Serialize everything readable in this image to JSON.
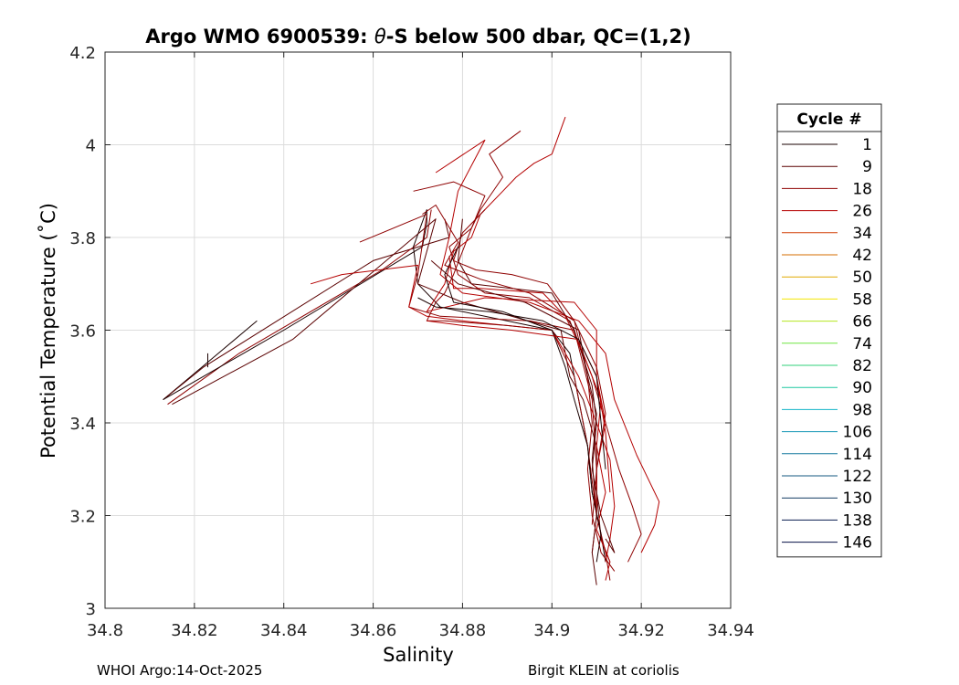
{
  "chart_data": {
    "type": "line",
    "title_prefix": "Argo WMO 6900539: ",
    "title_theta": "θ",
    "title_suffix": "-S below 500 dbar,  QC=(1,2)",
    "xlabel": "Salinity",
    "ylabel": "Potential Temperature (˚C)",
    "xlim": [
      34.8,
      34.94
    ],
    "ylim": [
      3.0,
      4.2
    ],
    "xticks": [
      34.8,
      34.82,
      34.84,
      34.86,
      34.88,
      34.9,
      34.92,
      34.94
    ],
    "xtick_labels": [
      "34.8",
      "34.82",
      "34.84",
      "34.86",
      "34.88",
      "34.9",
      "34.92",
      "34.94"
    ],
    "yticks": [
      3.0,
      3.2,
      3.4,
      3.6,
      3.8,
      4.0,
      4.2
    ],
    "ytick_labels": [
      "3",
      "3.2",
      "3.4",
      "3.6",
      "3.8",
      "4",
      "4.2"
    ],
    "grid": true,
    "legend_title": "Cycle #",
    "legend_position": "right",
    "legend": [
      {
        "label": "1",
        "color": "#1a0000"
      },
      {
        "label": "9",
        "color": "#5a0000"
      },
      {
        "label": "18",
        "color": "#8e0000"
      },
      {
        "label": "26",
        "color": "#b40000"
      },
      {
        "label": "34",
        "color": "#d23b00"
      },
      {
        "label": "42",
        "color": "#d66e00"
      },
      {
        "label": "50",
        "color": "#e0a800"
      },
      {
        "label": "58",
        "color": "#f2e600"
      },
      {
        "label": "66",
        "color": "#b4e61e"
      },
      {
        "label": "74",
        "color": "#6ee640"
      },
      {
        "label": "82",
        "color": "#32d278"
      },
      {
        "label": "90",
        "color": "#1ec8a0"
      },
      {
        "label": "98",
        "color": "#14b4c8"
      },
      {
        "label": "106",
        "color": "#1496b4"
      },
      {
        "label": "114",
        "color": "#14789e"
      },
      {
        "label": "122",
        "color": "#145a82"
      },
      {
        "label": "130",
        "color": "#143c64"
      },
      {
        "label": "138",
        "color": "#0a1e50"
      },
      {
        "label": "146",
        "color": "#050f46"
      }
    ],
    "series": [
      {
        "color": "#1a0000",
        "x": [
          34.813,
          34.834
        ],
        "y": [
          3.45,
          3.62
        ]
      },
      {
        "color": "#1a0000",
        "x": [
          34.823,
          34.823
        ],
        "y": [
          3.52,
          3.55
        ]
      },
      {
        "color": "#5a0000",
        "x": [
          34.813,
          34.822,
          34.86,
          34.877,
          34.876
        ],
        "y": [
          3.45,
          3.52,
          3.75,
          3.8,
          3.84
        ]
      },
      {
        "color": "#8e0000",
        "x": [
          34.814,
          34.83,
          34.862,
          34.872,
          34.873
        ],
        "y": [
          3.44,
          3.55,
          3.73,
          3.8,
          3.86
        ]
      },
      {
        "color": "#1a0000",
        "x": [
          34.813,
          34.84,
          34.871,
          34.872,
          34.872,
          34.869,
          34.87,
          34.875,
          34.9,
          34.904,
          34.906,
          34.908,
          34.909,
          34.911,
          34.912
        ],
        "y": [
          3.45,
          3.6,
          3.78,
          3.83,
          3.86,
          3.78,
          3.7,
          3.65,
          3.6,
          3.55,
          3.45,
          3.35,
          3.25,
          3.16,
          3.1
        ]
      },
      {
        "color": "#5a0000",
        "x": [
          34.815,
          34.842,
          34.874,
          34.87,
          34.88,
          34.902,
          34.904,
          34.907,
          34.91,
          34.91,
          34.911,
          34.913
        ],
        "y": [
          3.44,
          3.58,
          3.84,
          3.7,
          3.66,
          3.6,
          3.5,
          3.45,
          3.35,
          3.25,
          3.15,
          3.1
        ]
      },
      {
        "color": "#8e0000",
        "x": [
          34.857,
          34.872,
          34.87,
          34.868,
          34.875,
          34.895,
          34.905,
          34.909,
          34.91,
          34.91,
          34.912,
          34.913
        ],
        "y": [
          3.79,
          3.85,
          3.72,
          3.65,
          3.63,
          3.62,
          3.6,
          3.45,
          3.3,
          3.2,
          3.12,
          3.06
        ]
      },
      {
        "color": "#b40000",
        "x": [
          34.846,
          34.853,
          34.87,
          34.868,
          34.872,
          34.88,
          34.9,
          34.906,
          34.91,
          34.913,
          34.914,
          34.913,
          34.912
        ],
        "y": [
          3.7,
          3.72,
          3.74,
          3.65,
          3.63,
          3.62,
          3.6,
          3.5,
          3.4,
          3.32,
          3.22,
          3.15,
          3.1
        ]
      },
      {
        "color": "#8e0000",
        "x": [
          34.869,
          34.878,
          34.885,
          34.882,
          34.88,
          34.878,
          34.876,
          34.874,
          34.873,
          34.872,
          34.876,
          34.89,
          34.9,
          34.905,
          34.908,
          34.91
        ],
        "y": [
          3.9,
          3.92,
          3.89,
          3.82,
          3.77,
          3.72,
          3.68,
          3.66,
          3.64,
          3.62,
          3.62,
          3.61,
          3.6,
          3.5,
          3.35,
          3.2
        ]
      },
      {
        "color": "#b40000",
        "x": [
          34.874,
          34.885,
          34.879,
          34.877,
          34.875,
          34.88,
          34.895,
          34.906,
          34.912,
          34.914,
          34.919,
          34.924,
          34.923,
          34.92
        ],
        "y": [
          3.94,
          4.01,
          3.9,
          3.8,
          3.72,
          3.68,
          3.66,
          3.62,
          3.55,
          3.45,
          3.33,
          3.23,
          3.18,
          3.12
        ]
      },
      {
        "color": "#8e0000",
        "x": [
          34.893,
          34.886,
          34.889,
          34.884,
          34.882,
          34.877,
          34.879,
          34.885,
          34.895,
          34.904,
          34.909,
          34.912,
          34.915,
          34.918,
          34.92,
          34.917
        ],
        "y": [
          4.03,
          3.98,
          3.93,
          3.86,
          3.82,
          3.78,
          3.72,
          3.68,
          3.67,
          3.62,
          3.5,
          3.4,
          3.3,
          3.22,
          3.16,
          3.1
        ]
      },
      {
        "color": "#b40000",
        "x": [
          34.903,
          34.9,
          34.896,
          34.892,
          34.889,
          34.884,
          34.882,
          34.878,
          34.876,
          34.872,
          34.885,
          34.905,
          34.91,
          34.91,
          34.912,
          34.91,
          34.91,
          34.909
        ],
        "y": [
          4.06,
          3.98,
          3.96,
          3.93,
          3.9,
          3.85,
          3.8,
          3.77,
          3.7,
          3.64,
          3.67,
          3.66,
          3.6,
          3.5,
          3.4,
          3.3,
          3.2,
          3.12
        ]
      },
      {
        "color": "#8e0000",
        "x": [
          34.885,
          34.88,
          34.878,
          34.883,
          34.891,
          34.899,
          34.905,
          34.908,
          34.909,
          34.908,
          34.909,
          34.911,
          34.914
        ],
        "y": [
          3.86,
          3.81,
          3.75,
          3.73,
          3.72,
          3.7,
          3.62,
          3.5,
          3.4,
          3.3,
          3.2,
          3.12,
          3.08
        ]
      },
      {
        "color": "#5a0000",
        "x": [
          34.88,
          34.879,
          34.882,
          34.9,
          34.905,
          34.909,
          34.91,
          34.909,
          34.911,
          34.914,
          34.912
        ],
        "y": [
          3.84,
          3.75,
          3.7,
          3.68,
          3.6,
          3.48,
          3.4,
          3.3,
          3.2,
          3.12,
          3.15
        ]
      },
      {
        "color": "#b40000",
        "x": [
          34.877,
          34.878,
          34.884,
          34.898,
          34.903,
          34.907,
          34.911,
          34.91,
          34.912,
          34.91,
          34.913,
          34.912
        ],
        "y": [
          3.76,
          3.69,
          3.69,
          3.68,
          3.63,
          3.55,
          3.45,
          3.35,
          3.25,
          3.17,
          3.1,
          3.06
        ]
      },
      {
        "color": "#1a0000",
        "x": [
          34.879,
          34.876,
          34.878,
          34.889,
          34.9,
          34.903,
          34.905,
          34.908,
          34.909,
          34.911,
          34.91
        ],
        "y": [
          3.78,
          3.72,
          3.66,
          3.64,
          3.6,
          3.52,
          3.45,
          3.35,
          3.25,
          3.16,
          3.1
        ]
      },
      {
        "color": "#5a0000",
        "x": [
          34.873,
          34.879,
          34.894,
          34.906,
          34.908,
          34.91,
          34.909,
          34.91,
          34.909,
          34.91
        ],
        "y": [
          3.75,
          3.7,
          3.66,
          3.6,
          3.5,
          3.42,
          3.32,
          3.2,
          3.12,
          3.05
        ]
      },
      {
        "color": "#8e0000",
        "x": [
          34.871,
          34.874,
          34.879,
          34.876,
          34.884,
          34.895,
          34.905,
          34.91,
          34.912,
          34.91,
          34.909
        ],
        "y": [
          3.85,
          3.87,
          3.79,
          3.74,
          3.71,
          3.68,
          3.62,
          3.52,
          3.42,
          3.3,
          3.18
        ]
      },
      {
        "color": "#b40000",
        "x": [
          34.872,
          34.88,
          34.891,
          34.906,
          34.91,
          34.912,
          34.913
        ],
        "y": [
          3.62,
          3.61,
          3.6,
          3.58,
          3.5,
          3.38,
          3.25
        ]
      },
      {
        "color": "#1a0000",
        "x": [
          34.87,
          34.874,
          34.886,
          34.898,
          34.906,
          34.91,
          34.911,
          34.912
        ],
        "y": [
          3.67,
          3.65,
          3.64,
          3.62,
          3.58,
          3.5,
          3.4,
          3.3
        ]
      }
    ]
  },
  "footer": {
    "left": "WHOI Argo:14-Oct-2025",
    "right": "Birgit KLEIN at coriolis"
  }
}
